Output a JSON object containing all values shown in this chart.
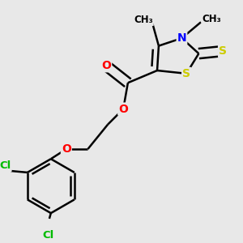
{
  "background_color": "#e8e8e8",
  "bond_color": "#000000",
  "atom_colors": {
    "N": "#0000ff",
    "O": "#ff0000",
    "S": "#cccc00",
    "Cl": "#00bb00",
    "C": "#000000"
  },
  "bond_width": 1.8,
  "figsize": [
    3.0,
    3.0
  ],
  "dpi": 100
}
